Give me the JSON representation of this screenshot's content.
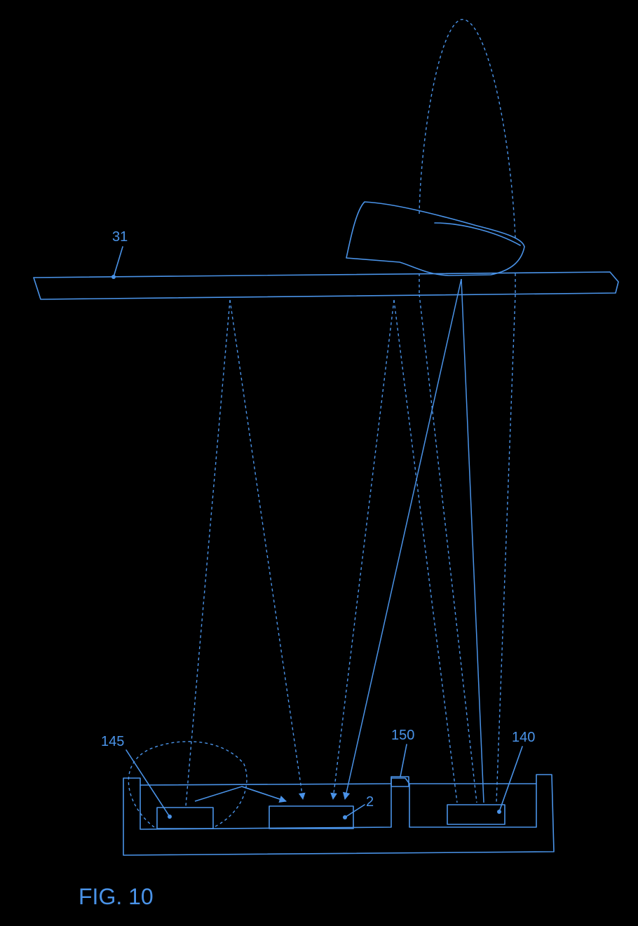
{
  "labels": {
    "ref_31": "31",
    "ref_145": "145",
    "ref_150": "150",
    "ref_140": "140",
    "ref_2": "2"
  },
  "caption": "FIG. 10",
  "colors": {
    "background": "#000000",
    "line": "#4a93e8"
  }
}
